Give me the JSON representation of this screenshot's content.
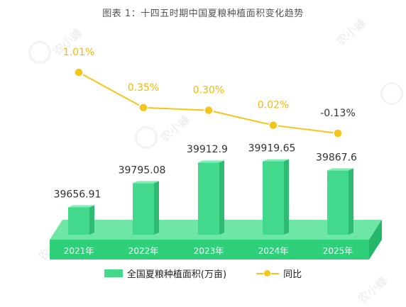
{
  "title": "图表 1：十四五时期中国夏粮种植面积变化趋势",
  "watermark": "农小蜂",
  "legend": {
    "bar_label": "全国夏粮种植面积(万亩)",
    "line_label": "同比"
  },
  "colors": {
    "bar_front": "#43d98c",
    "bar_side": "#2fbb72",
    "bar_top": "#7ef0b5",
    "platform_top": "#6ee6a6",
    "platform_front": "#2fd07a",
    "line": "#f5c518",
    "label_line": "#f5b800"
  },
  "chart_data": {
    "type": "bar",
    "categories": [
      "2021年",
      "2022年",
      "2023年",
      "2024年",
      "2025年"
    ],
    "series": [
      {
        "name": "全国夏粮种植面积(万亩)",
        "type": "bar",
        "values": [
          39656.91,
          39795.08,
          39912.9,
          39919.65,
          39867.6
        ],
        "labels": [
          "39656.91",
          "39795.08",
          "39912.9",
          "39919.65",
          "39867.6"
        ]
      },
      {
        "name": "同比",
        "type": "line",
        "values": [
          1.01,
          0.35,
          0.3,
          0.02,
          -0.13
        ],
        "labels": [
          "1.01%",
          "0.35%",
          "0.30%",
          "0.02%",
          "-0.13%"
        ]
      }
    ],
    "title": "图表 1：十四五时期中国夏粮种植面积变化趋势"
  }
}
